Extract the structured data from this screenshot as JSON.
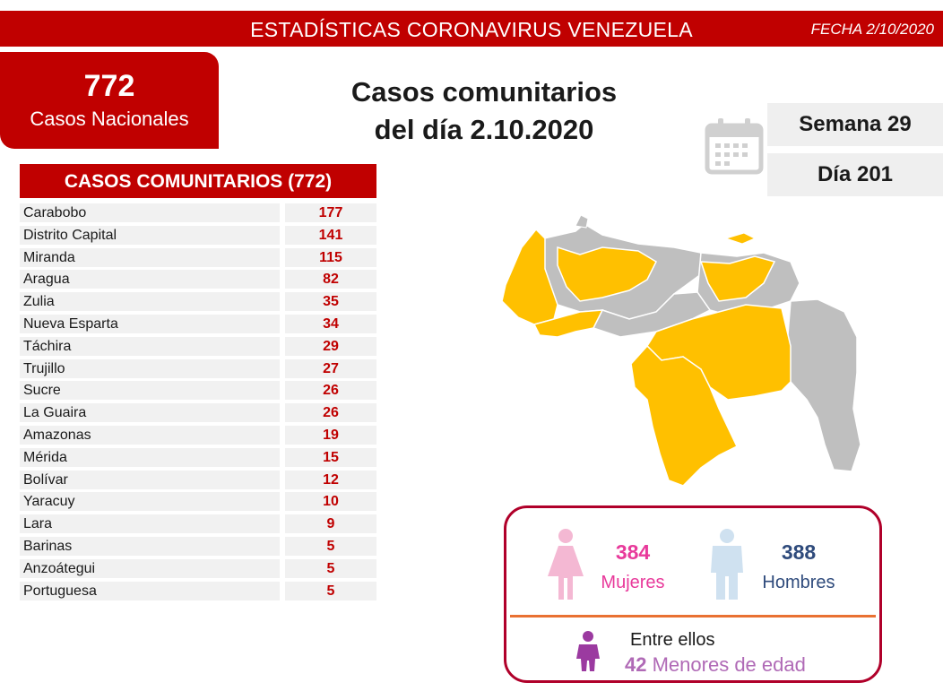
{
  "header": {
    "title": "ESTADÍSTICAS CORONAVIRUS VENEZUELA",
    "date": "FECHA 2/10/2020"
  },
  "national": {
    "count": "772",
    "label": "Casos Nacionales"
  },
  "headline": {
    "line1": "Casos comunitarios",
    "line2": "del día 2.10.2020"
  },
  "calendar": {
    "icon": "calendar-icon",
    "week": "Semana 29",
    "day": "Día 201"
  },
  "table": {
    "title": "CASOS COMUNITARIOS (772)",
    "rows": [
      {
        "name": "Carabobo",
        "value": "177"
      },
      {
        "name": "Distrito Capital",
        "value": "141"
      },
      {
        "name": "Miranda",
        "value": "115"
      },
      {
        "name": "Aragua",
        "value": "82"
      },
      {
        "name": "Zulia",
        "value": "35"
      },
      {
        "name": "Nueva Esparta",
        "value": "34"
      },
      {
        "name": "Táchira",
        "value": "29"
      },
      {
        "name": "Trujillo",
        "value": "27"
      },
      {
        "name": "Sucre",
        "value": "26"
      },
      {
        "name": "La Guaira",
        "value": "26"
      },
      {
        "name": "Amazonas",
        "value": "19"
      },
      {
        "name": "Mérida",
        "value": "15"
      },
      {
        "name": "Bolívar",
        "value": "12"
      },
      {
        "name": "Yaracuy",
        "value": "10"
      },
      {
        "name": "Lara",
        "value": "9"
      },
      {
        "name": "Barinas",
        "value": "5"
      },
      {
        "name": "Anzoátegui",
        "value": "5"
      },
      {
        "name": "Portuguesa",
        "value": "5"
      }
    ]
  },
  "map": {
    "highlight_color": "#ffc000",
    "base_color": "#bfbfbf"
  },
  "gender": {
    "women": {
      "count": "384",
      "label": "Mujeres",
      "color": "#e83a9b",
      "icon": "woman-icon"
    },
    "men": {
      "count": "388",
      "label": "Hombres",
      "color": "#2f4b7c",
      "icon": "man-icon"
    },
    "minors": {
      "intro": "Entre ellos",
      "count": "42",
      "label": "Menores de edad",
      "icon": "child-icon"
    }
  },
  "colors": {
    "primary_red": "#c00000",
    "divider_orange": "#e97132",
    "box_border": "#b0002a"
  }
}
